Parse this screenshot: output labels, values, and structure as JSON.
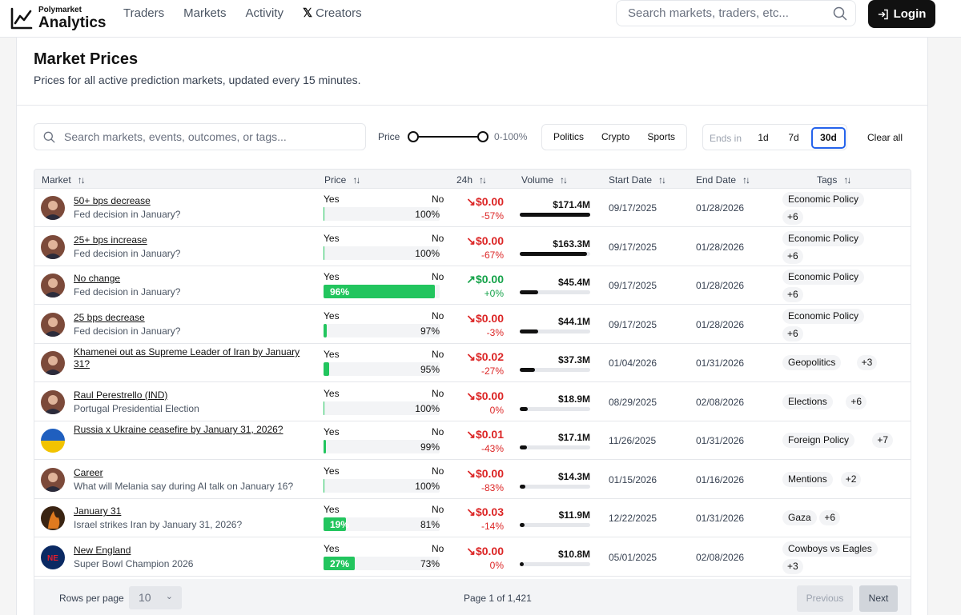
{
  "brand": {
    "small": "Polymarket",
    "big": "Analytics"
  },
  "nav": [
    {
      "label": "Traders"
    },
    {
      "label": "Markets"
    },
    {
      "label": "Activity"
    },
    {
      "label": "Creators",
      "icon": "x-logo-icon"
    }
  ],
  "top_search": {
    "placeholder": "Search markets, traders, etc..."
  },
  "login": {
    "label": "Login"
  },
  "page": {
    "title": "Market Prices",
    "subtitle": "Prices for all active prediction markets, updated every 15 minutes."
  },
  "filters": {
    "search_placeholder": "Search markets, events, outcomes, or tags...",
    "price_label": "Price",
    "price_range": "0-100%",
    "price_min": 0,
    "price_max": 100,
    "categories": [
      "Politics",
      "Crypto",
      "Sports"
    ],
    "ends_label": "Ends in",
    "ranges": [
      "1d",
      "7d",
      "30d"
    ],
    "active_range": "30d",
    "clear_all": "Clear all"
  },
  "columns": [
    "Market",
    "Price",
    "24h",
    "Volume",
    "Start Date",
    "End Date",
    "Tags"
  ],
  "rows": [
    {
      "title": "50+ bps decrease",
      "subtitle": "Fed decision in January?",
      "yes": "Yes",
      "no": "No",
      "yes_frac": 0.0,
      "yes_pct": "",
      "no_pct": "100%",
      "change": "$0.00",
      "change_pct": "-57%",
      "dir": "down",
      "volume": "$171.4M",
      "vol_frac": 1.0,
      "start": "09/17/2025",
      "end": "01/28/2026",
      "tag": "Economic Policy",
      "more": "+6",
      "avatar": "person"
    },
    {
      "title": "25+ bps increase",
      "subtitle": "Fed decision in January?",
      "yes": "Yes",
      "no": "No",
      "yes_frac": 0.0,
      "yes_pct": "",
      "no_pct": "100%",
      "change": "$0.00",
      "change_pct": "-67%",
      "dir": "down",
      "volume": "$163.3M",
      "vol_frac": 0.95,
      "start": "09/17/2025",
      "end": "01/28/2026",
      "tag": "Economic Policy",
      "more": "+6",
      "avatar": "person"
    },
    {
      "title": "No change",
      "subtitle": "Fed decision in January?",
      "yes": "Yes",
      "no": "No",
      "yes_frac": 0.96,
      "yes_pct": "96%",
      "no_pct": "",
      "change": "$0.00",
      "change_pct": "+0%",
      "dir": "up",
      "volume": "$45.4M",
      "vol_frac": 0.26,
      "start": "09/17/2025",
      "end": "01/28/2026",
      "tag": "Economic Policy",
      "more": "+6",
      "avatar": "person"
    },
    {
      "title": "25 bps decrease",
      "subtitle": "Fed decision in January?",
      "yes": "Yes",
      "no": "No",
      "yes_frac": 0.03,
      "yes_pct": "",
      "no_pct": "97%",
      "change": "$0.00",
      "change_pct": "-3%",
      "dir": "down",
      "volume": "$44.1M",
      "vol_frac": 0.26,
      "start": "09/17/2025",
      "end": "01/28/2026",
      "tag": "Economic Policy",
      "more": "+6",
      "avatar": "person"
    },
    {
      "title": "Khamenei out as Supreme Leader of Iran by January 31?",
      "subtitle": "",
      "yes": "Yes",
      "no": "No",
      "yes_frac": 0.05,
      "yes_pct": "",
      "no_pct": "95%",
      "change": "$0.02",
      "change_pct": "-27%",
      "dir": "down",
      "volume": "$37.3M",
      "vol_frac": 0.22,
      "start": "01/04/2026",
      "end": "01/31/2026",
      "tag": "Geopolitics",
      "more": "+3",
      "avatar": "person"
    },
    {
      "title": "Raul Perestrello (IND)",
      "subtitle": "Portugal Presidential Election",
      "yes": "Yes",
      "no": "No",
      "yes_frac": 0.0,
      "yes_pct": "",
      "no_pct": "100%",
      "change": "$0.00",
      "change_pct": "0%",
      "dir": "down",
      "volume": "$18.9M",
      "vol_frac": 0.11,
      "start": "08/29/2025",
      "end": "02/08/2026",
      "tag": "Elections",
      "more": "+6",
      "avatar": "person"
    },
    {
      "title": "Russia x Ukraine ceasefire by January 31, 2026?",
      "subtitle": "",
      "yes": "Yes",
      "no": "No",
      "yes_frac": 0.01,
      "yes_pct": "",
      "no_pct": "99%",
      "change": "$0.01",
      "change_pct": "-43%",
      "dir": "down",
      "volume": "$17.1M",
      "vol_frac": 0.1,
      "start": "11/26/2025",
      "end": "01/31/2026",
      "tag": "Foreign Policy",
      "more": "+7",
      "avatar": "flag"
    },
    {
      "title": "Career",
      "subtitle": "What will Melania say during AI talk on January 16?",
      "yes": "Yes",
      "no": "No",
      "yes_frac": 0.0,
      "yes_pct": "",
      "no_pct": "100%",
      "change": "$0.00",
      "change_pct": "-83%",
      "dir": "down",
      "volume": "$14.3M",
      "vol_frac": 0.08,
      "start": "01/15/2026",
      "end": "01/16/2026",
      "tag": "Mentions",
      "more": "+2",
      "avatar": "person"
    },
    {
      "title": "January 31",
      "subtitle": "Israel strikes Iran by January 31, 2026?",
      "yes": "Yes",
      "no": "No",
      "yes_frac": 0.19,
      "yes_pct": "19%",
      "no_pct": "81%",
      "change": "$0.03",
      "change_pct": "-14%",
      "dir": "down",
      "volume": "$11.9M",
      "vol_frac": 0.07,
      "start": "12/22/2025",
      "end": "01/31/2026",
      "tag": "Gaza",
      "more": "+6",
      "avatar": "fire"
    },
    {
      "title": "New England",
      "subtitle": "Super Bowl Champion 2026",
      "yes": "Yes",
      "no": "No",
      "yes_frac": 0.27,
      "yes_pct": "27%",
      "no_pct": "73%",
      "change": "$0.00",
      "change_pct": "0%",
      "dir": "down",
      "volume": "$10.8M",
      "vol_frac": 0.06,
      "start": "05/01/2025",
      "end": "02/08/2026",
      "tag": "Cowboys vs Eagles",
      "more": "+3",
      "avatar": "ne"
    }
  ],
  "footer": {
    "rows_label": "Rows per page",
    "rows_value": "10",
    "page_info": "Page 1 of 1,421",
    "prev": "Previous",
    "next": "Next"
  },
  "colors": {
    "accent": "#22c55e",
    "down": "#dc2626",
    "up": "#16a34a",
    "active_border": "#2563eb"
  }
}
